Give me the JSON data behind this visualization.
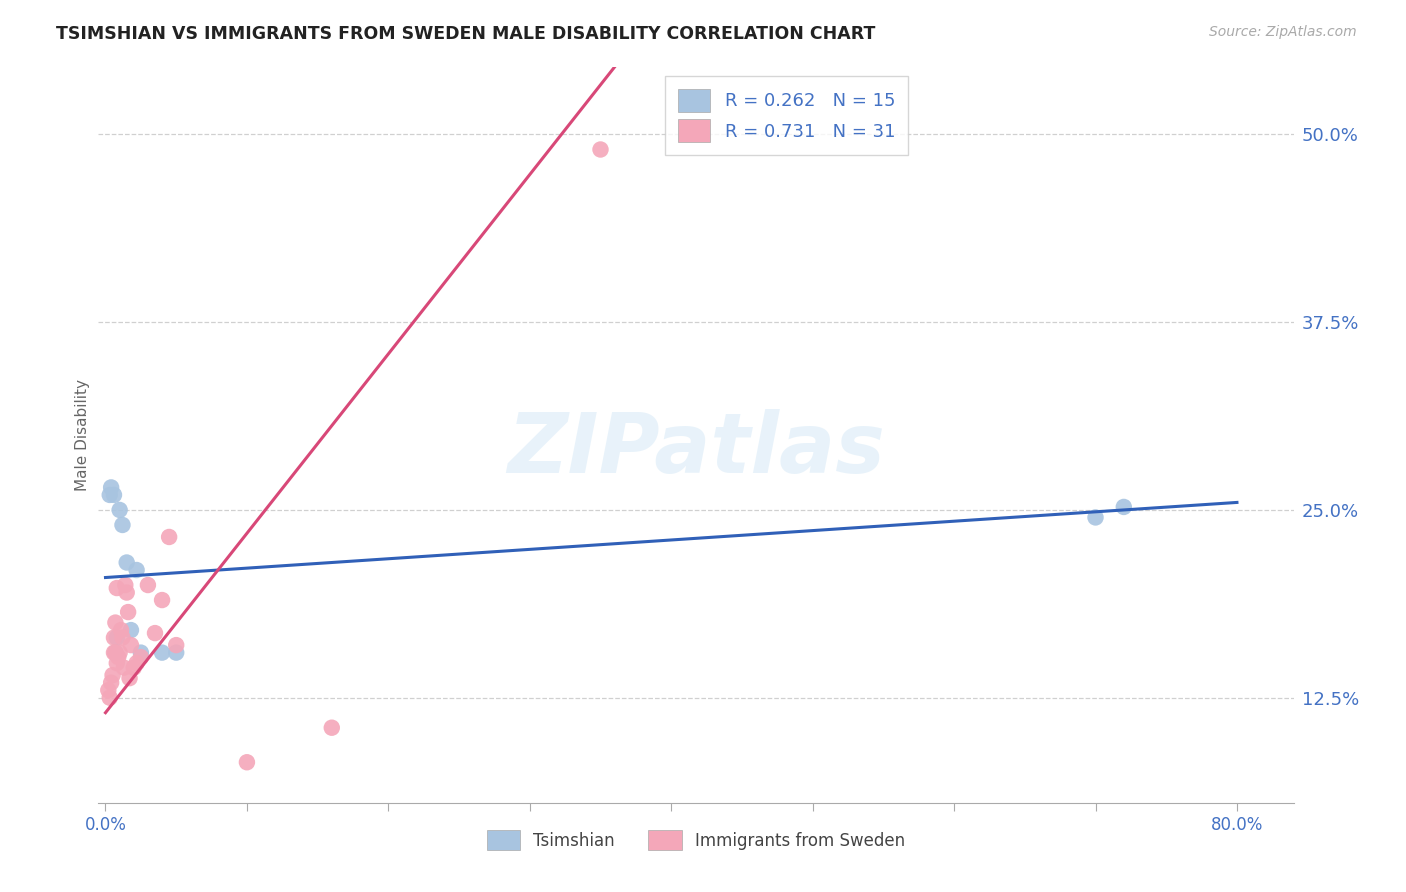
{
  "title": "TSIMSHIAN VS IMMIGRANTS FROM SWEDEN MALE DISABILITY CORRELATION CHART",
  "source": "Source: ZipAtlas.com",
  "ylabel": "Male Disability",
  "ytick_labels": [
    "12.5%",
    "25.0%",
    "37.5%",
    "50.0%"
  ],
  "ytick_values": [
    0.125,
    0.25,
    0.375,
    0.5
  ],
  "xtick_values": [
    0.0,
    0.1,
    0.2,
    0.3,
    0.4,
    0.5,
    0.6,
    0.7,
    0.8
  ],
  "xlim": [
    -0.005,
    0.84
  ],
  "ylim": [
    0.055,
    0.545
  ],
  "legend_r1": "0.262",
  "legend_n1": "15",
  "legend_r2": "0.731",
  "legend_n2": "31",
  "label1": "Tsimshian",
  "label2": "Immigrants from Sweden",
  "color1": "#a8c4e0",
  "color2": "#f4a7b9",
  "line_color1": "#3060b8",
  "line_color2": "#d84878",
  "tsimshian_x": [
    0.003,
    0.004,
    0.006,
    0.007,
    0.008,
    0.01,
    0.012,
    0.015,
    0.018,
    0.022,
    0.025,
    0.04,
    0.05,
    0.7,
    0.72
  ],
  "tsimshian_y": [
    0.26,
    0.265,
    0.26,
    0.155,
    0.165,
    0.25,
    0.24,
    0.215,
    0.17,
    0.21,
    0.155,
    0.155,
    0.155,
    0.245,
    0.252
  ],
  "sweden_x": [
    0.002,
    0.003,
    0.004,
    0.005,
    0.006,
    0.006,
    0.007,
    0.007,
    0.008,
    0.008,
    0.009,
    0.01,
    0.011,
    0.012,
    0.013,
    0.014,
    0.015,
    0.016,
    0.017,
    0.018,
    0.02,
    0.022,
    0.025,
    0.03,
    0.035,
    0.04,
    0.045,
    0.05,
    0.1,
    0.16,
    0.35
  ],
  "sweden_y": [
    0.13,
    0.125,
    0.135,
    0.14,
    0.155,
    0.165,
    0.155,
    0.175,
    0.148,
    0.198,
    0.152,
    0.155,
    0.17,
    0.165,
    0.145,
    0.2,
    0.195,
    0.182,
    0.138,
    0.16,
    0.145,
    0.148,
    0.152,
    0.2,
    0.168,
    0.19,
    0.232,
    0.16,
    0.082,
    0.105,
    0.49
  ],
  "blue_line_x0": 0.0,
  "blue_line_y0": 0.205,
  "blue_line_x1": 0.8,
  "blue_line_y1": 0.255,
  "pink_line_x0": 0.0,
  "pink_line_y0": 0.115,
  "pink_line_x1": 0.36,
  "pink_line_y1": 0.545,
  "watermark_text": "ZIPatlas",
  "background_color": "#ffffff",
  "grid_color": "#d0d0d0"
}
